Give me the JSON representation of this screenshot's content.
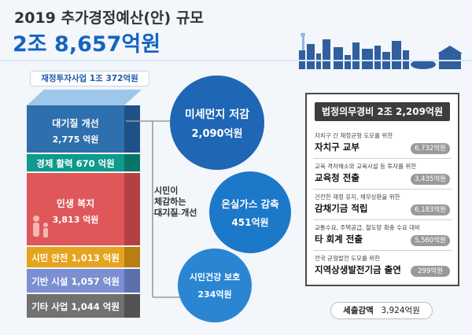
{
  "header": {
    "title": "2019 추가경정예산(안) 규모",
    "total": "2조 8,657억원"
  },
  "left": {
    "tag": "재정투자사업 1조 372억원",
    "blocks": [
      {
        "label": "대기질 개선",
        "value": "2,775 억원",
        "color": "#2e6fad"
      },
      {
        "label": "경제 활력 670 억원",
        "color": "#0e9a8c"
      },
      {
        "label": "민생 복지",
        "value": "3,813 억원",
        "color": "#e0575a"
      },
      {
        "label": "시민 안전 1,013 억원",
        "color": "#e6a31e"
      },
      {
        "label": "기반 시설 1,057 억원",
        "color": "#7b8fd1"
      },
      {
        "label": "기타 사업 1,044 억원",
        "color": "#717171"
      }
    ]
  },
  "air": {
    "brace_label": [
      "시민이",
      "체감하는",
      "대기질 개선"
    ],
    "circles": [
      {
        "title": "미세먼지 저감",
        "value": "2,090억원",
        "color": "#1f66b5"
      },
      {
        "title": "온실가스 감축",
        "value": "451억원",
        "color": "#1c78c9"
      },
      {
        "title": "시민건강 보호",
        "value": "234억원",
        "color": "#2a86d3"
      }
    ]
  },
  "right": {
    "header": "법정의무경비 2조 2,209억원",
    "items": [
      {
        "sub": "자치구 간 재정균형 도모를 위한",
        "main": "자치구 교부",
        "value": "6,732억원"
      },
      {
        "sub": "교육 격차해소와 교육시설 등 투자를 위한",
        "main": "교육청 전출",
        "value": "3,435억원"
      },
      {
        "sub": "건전한 재정 유지, 채무상환을 위한",
        "main": "감채기금 적립",
        "value": "6,183억원"
      },
      {
        "sub": "교통수요, 주택공급, 철도망 확충 수요 대비",
        "main": "타 회계 전출",
        "value": "5,560억원"
      },
      {
        "sub": "전국 균형발전 도모를 위한",
        "main": "지역상생발전기금 출연",
        "value": "299억원"
      }
    ]
  },
  "cut": {
    "label": "세출감액",
    "value": "3,924억원"
  }
}
